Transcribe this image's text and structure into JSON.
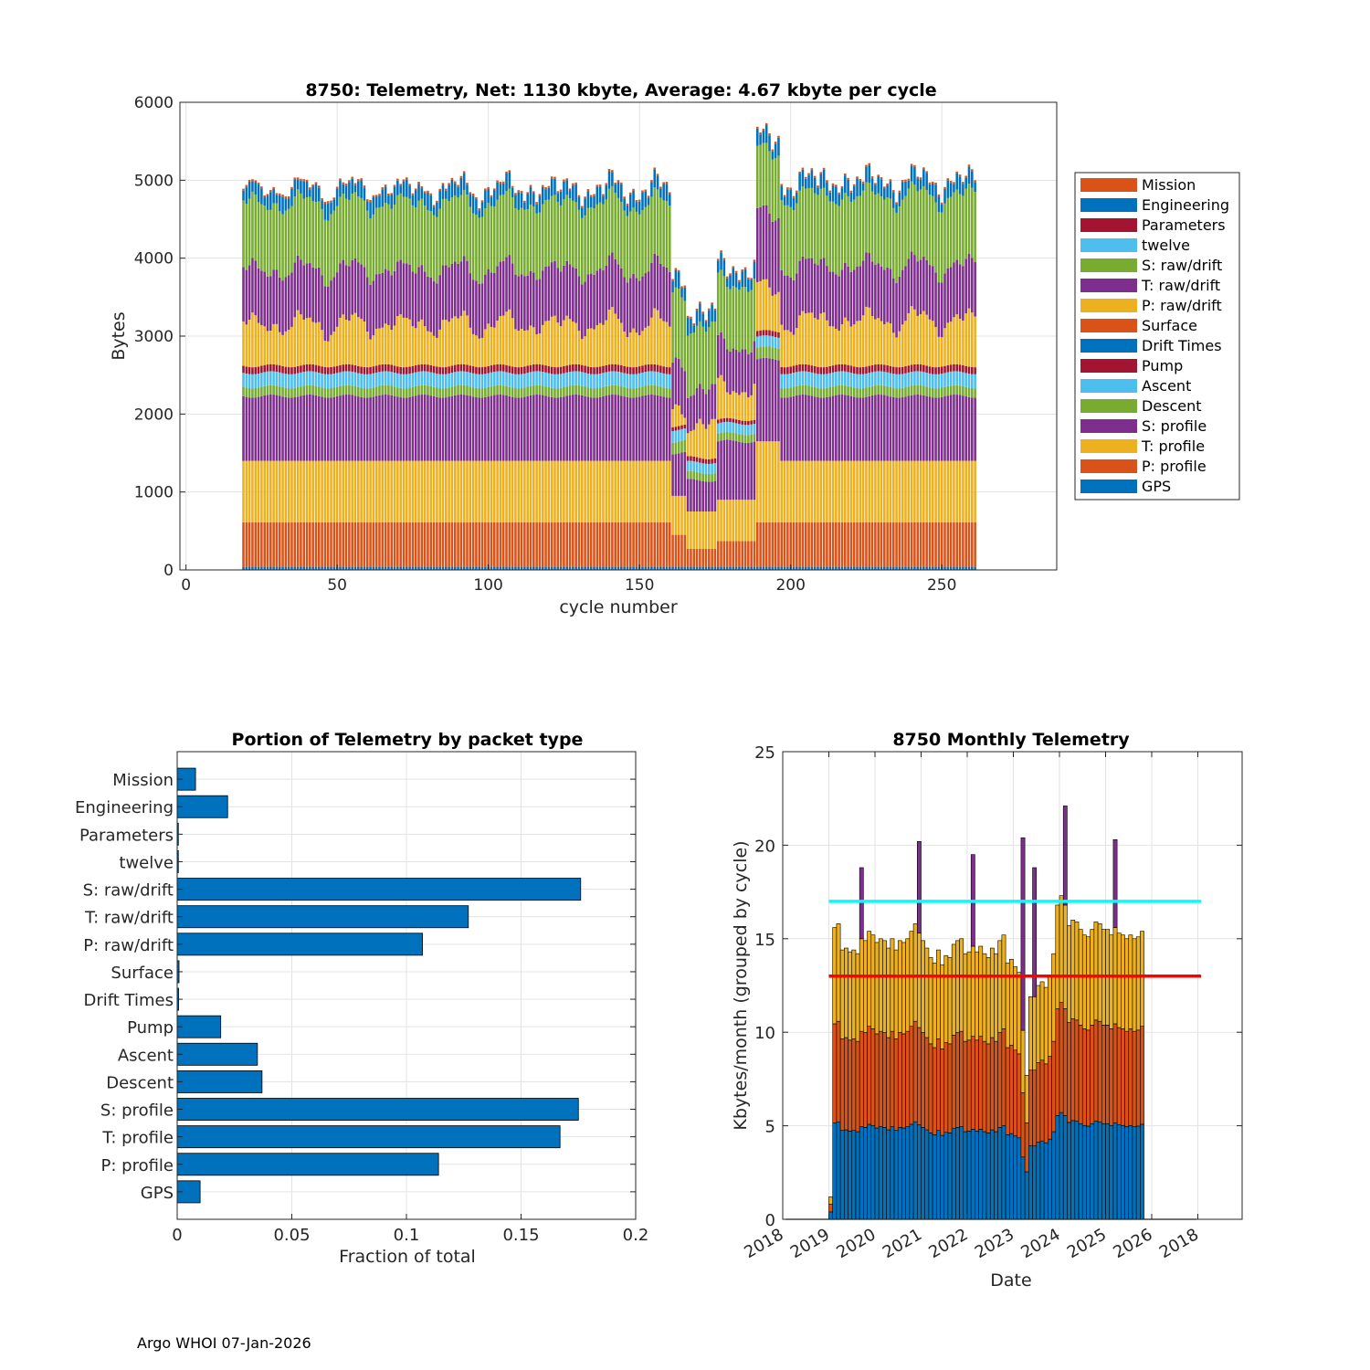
{
  "footer": "Argo WHOI 07-Jan-2026",
  "colors": {
    "orange": "#D95319",
    "blue": "#0072BD",
    "darkred": "#A2142F",
    "lightblue": "#4DBEEE",
    "green": "#77AC30",
    "purple": "#7E2F8E",
    "yellow": "#EDB120",
    "cyan": "#00FFFF",
    "red": "#FF0000"
  },
  "chart_data": [
    {
      "type": "bar",
      "stacked": true,
      "title": "8750: Telemetry, Net:   1130 kbyte,  Average: 4.67 kbyte per cycle",
      "xlabel": "cycle number",
      "ylabel": "Bytes",
      "xlim": [
        -2,
        288
      ],
      "ylim": [
        0,
        6000
      ],
      "xticks": [
        0,
        50,
        100,
        150,
        200,
        250
      ],
      "yticks": [
        0,
        1000,
        2000,
        3000,
        4000,
        5000,
        6000
      ],
      "grid": true,
      "legend_position": "outside-right",
      "legend": [
        "Mission",
        "Engineering",
        "Parameters",
        "twelve",
        "S: raw/drift",
        "T: raw/drift",
        "P: raw/drift",
        "Surface",
        "Drift Times",
        "Pump",
        "Ascent",
        "Descent",
        "S: profile",
        "T: profile",
        "P: profile",
        "GPS"
      ],
      "legend_colors": [
        "orange",
        "blue",
        "darkred",
        "lightblue",
        "green",
        "purple",
        "yellow",
        "orange",
        "blue",
        "darkred",
        "lightblue",
        "green",
        "purple",
        "yellow",
        "orange",
        "blue"
      ],
      "cycle_range": [
        19,
        261
      ],
      "stack_order_bottom_to_top": [
        "GPS",
        "P: profile",
        "T: profile",
        "S: profile",
        "Descent",
        "Ascent",
        "Pump",
        "P: raw/drift",
        "T: raw/drift",
        "S: raw/drift",
        "Engineering",
        "Mission"
      ],
      "layer_tops_by_cycle_segments": [
        {
          "cycles": [
            19,
            160
          ],
          "gps": 40,
          "p_profile": 610,
          "t_profile": 1400,
          "s_profile": 2230,
          "descent": 2350,
          "ascent": 2530,
          "pump": 2620,
          "p_raw": 3150,
          "t_raw": 3850,
          "s_raw": 4700,
          "top": 4800
        },
        {
          "cycles": [
            161,
            165
          ],
          "gps": 40,
          "p_profile": 450,
          "t_profile": 950,
          "s_profile": 1500,
          "descent": 1650,
          "ascent": 1800,
          "pump": 1850,
          "p_raw": 2100,
          "t_raw": 2700,
          "s_raw": 3600,
          "top": 3800
        },
        {
          "cycles": [
            166,
            175
          ],
          "gps": 40,
          "p_profile": 270,
          "t_profile": 750,
          "s_profile": 1150,
          "descent": 1250,
          "ascent": 1380,
          "pump": 1440,
          "p_raw": 1850,
          "t_raw": 2300,
          "s_raw": 3100,
          "top": 3250
        },
        {
          "cycles": [
            176,
            188
          ],
          "gps": 40,
          "p_profile": 370,
          "t_profile": 900,
          "s_profile": 1650,
          "descent": 1750,
          "ascent": 1880,
          "pump": 1930,
          "p_raw": 2350,
          "t_raw": 2900,
          "s_raw": 3700,
          "top": 4000
        },
        {
          "cycles": [
            189,
            196
          ],
          "gps": 40,
          "p_profile": 610,
          "t_profile": 1650,
          "s_profile": 2700,
          "descent": 2850,
          "ascent": 2990,
          "pump": 3060,
          "p_raw": 3550,
          "t_raw": 4500,
          "s_raw": 5300,
          "top": 5500
        },
        {
          "cycles": [
            197,
            261
          ],
          "gps": 40,
          "p_profile": 610,
          "t_profile": 1400,
          "s_profile": 2230,
          "descent": 2350,
          "ascent": 2530,
          "pump": 2620,
          "p_raw": 3200,
          "t_raw": 3900,
          "s_raw": 4800,
          "top": 4950
        }
      ]
    },
    {
      "type": "bar",
      "orientation": "horizontal",
      "title": "Portion of Telemetry by packet type",
      "xlabel": "Fraction of total",
      "ylabel": "",
      "xlim": [
        0,
        0.2
      ],
      "xticks": [
        0,
        0.05,
        0.1,
        0.15,
        0.2
      ],
      "xtick_labels": [
        "0",
        "0.05",
        "0.1",
        "0.15",
        "0.2"
      ],
      "grid": true,
      "categories": [
        "Mission",
        "Engineering",
        "Parameters",
        "twelve",
        "S: raw/drift",
        "T: raw/drift",
        "P: raw/drift",
        "Surface",
        "Drift Times",
        "Pump",
        "Ascent",
        "Descent",
        "S: profile",
        "T: profile",
        "P: profile",
        "GPS"
      ],
      "values": [
        0.008,
        0.022,
        0.0005,
        0.0005,
        0.176,
        0.127,
        0.107,
        0.0008,
        0.0006,
        0.019,
        0.035,
        0.037,
        0.175,
        0.167,
        0.114,
        0.01
      ]
    },
    {
      "type": "bar",
      "stacked": true,
      "title": "8750 Monthly Telemetry",
      "xlabel": "Date",
      "ylabel": "Kbytes/month (grouped by cycle)",
      "ylim": [
        0,
        25
      ],
      "yticks": [
        0,
        5,
        10,
        15,
        20,
        25
      ],
      "xtick_labels": [
        "2018",
        "2019",
        "2020",
        "2021",
        "2022",
        "2023",
        "2024",
        "2025",
        "2026",
        "2018"
      ],
      "grid": true,
      "reference_lines": [
        {
          "value": 17,
          "color": "cyan"
        },
        {
          "value": 13,
          "color": "red"
        }
      ],
      "months_start": 2019.0,
      "month_totals": [
        1.2,
        15.6,
        15.8,
        14.4,
        14.5,
        14.3,
        14.4,
        14.2,
        15.0,
        14.9,
        15.4,
        15.2,
        14.8,
        15.0,
        14.9,
        14.5,
        15.0,
        14.4,
        14.9,
        14.8,
        15.0,
        15.4,
        15.8,
        15.3,
        14.9,
        14.5,
        14.0,
        13.7,
        14.4,
        13.6,
        14.1,
        14.0,
        14.7,
        14.9,
        15.0,
        14.2,
        14.3,
        14.6,
        14.3,
        14.6,
        14.2,
        14.0,
        14.5,
        14.2,
        14.9,
        15.2,
        13.7,
        13.9,
        13.5,
        13.2,
        10.1,
        7.7,
        11.9,
        11.9,
        12.5,
        12.7,
        12.4,
        13.0,
        14.2,
        16.8,
        17.3,
        16.8,
        15.7,
        16.0,
        15.9,
        15.5,
        15.2,
        15.1,
        15.5,
        15.9,
        15.8,
        15.5,
        15.5,
        15.2,
        15.6,
        15.3,
        15.2,
        15.0,
        15.2,
        15.0,
        15.1,
        15.4
      ],
      "spikes": [
        {
          "month_index": 8,
          "value": 18.8
        },
        {
          "month_index": 23,
          "value": 20.2
        },
        {
          "month_index": 37,
          "value": 19.5
        },
        {
          "month_index": 50,
          "value": 20.4
        },
        {
          "month_index": 53,
          "value": 18.8
        },
        {
          "month_index": 61,
          "value": 22.1
        },
        {
          "month_index": 74,
          "value": 20.3
        }
      ],
      "layer_fractions": {
        "blue": 0.33,
        "orange": 0.67,
        "yellow": 1.0
      }
    }
  ]
}
